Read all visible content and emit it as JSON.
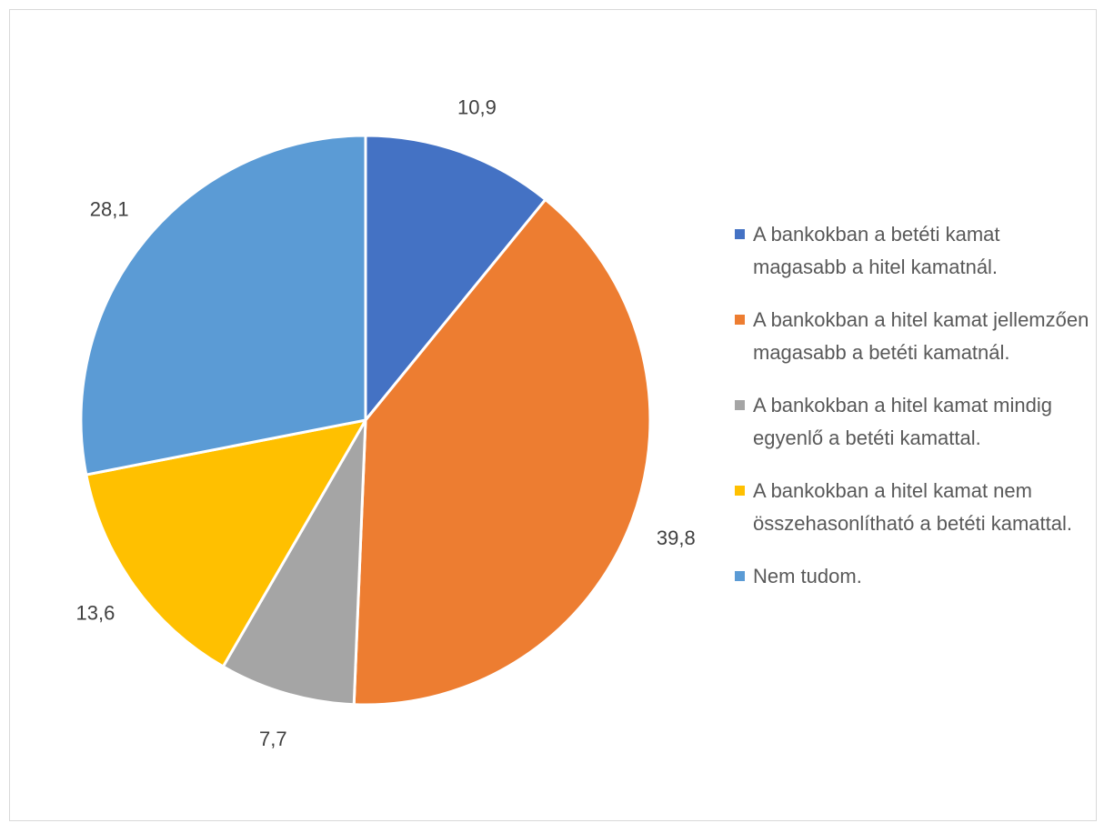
{
  "chart_data": {
    "type": "pie",
    "categories": [
      "A bankokban a betéti kamat magasabb a hitel kamatnál.",
      "A bankokban a hitel kamat jellemzően magasabb a betéti kamatnál.",
      "A bankokban a hitel kamat mindig egyenlő a betéti kamattal.",
      "A bankokban a hitel kamat nem összehasonlítható a betéti kamattal.",
      "Nem tudom."
    ],
    "values": [
      10.9,
      39.8,
      7.7,
      13.6,
      28.1
    ],
    "data_labels": [
      "10,9",
      "39,8",
      "7,7",
      "13,6",
      "28,1"
    ],
    "colors": [
      "#4472c4",
      "#ed7d31",
      "#a5a5a5",
      "#ffc000",
      "#5b9bd5"
    ],
    "legend_position": "right",
    "start_angle": "12 o'clock",
    "direction": "clockwise"
  }
}
